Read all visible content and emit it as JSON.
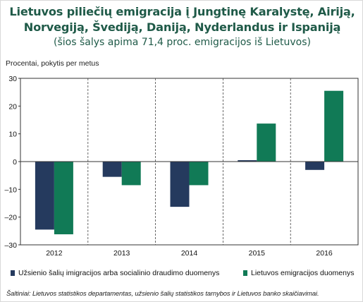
{
  "title": "Lietuvos piliečių emigracija į Jungtinę Karalystę, Airiją, Norvegiją, Švediją, Daniją, Nyderlandus ir Ispaniją",
  "subtitle": "(šios šalys apima 71,4 proc. emigracijos iš Lietuvos)",
  "source": "Šaltiniai: Lietuvos statistikos departamentas, užsienio šalių statistikos tarnybos ir Lietuvos banko skaičiavimai.",
  "colors": {
    "series1": "#253a5e",
    "series2": "#117a56",
    "title": "#1f5a48"
  },
  "chart_data": {
    "type": "bar",
    "title": "Lietuvos piliečių emigracija į Jungtinę Karalystę, Airiją, Norvegiją, Švediją, Daniją, Nyderlandus ir Ispaniją",
    "subtitle": "(šios šalys apima 71,4 proc. emigracijos iš Lietuvos)",
    "xlabel": "",
    "ylabel": "Procentai, pokytis per metus",
    "categories": [
      "2012",
      "2013",
      "2014",
      "2015",
      "2016"
    ],
    "ylim": [
      -30,
      30
    ],
    "yticks": [
      30,
      20,
      10,
      0,
      -10,
      -20,
      -30
    ],
    "ytick_labels": [
      "30",
      "20",
      "10",
      "0",
      "–10",
      "–20",
      "–30"
    ],
    "grid": "vertical dashed",
    "legend_position": "bottom",
    "series": [
      {
        "name": "Užsienio šalių imigracijos arba socialinio draudimo duomenys",
        "color": "#253a5e",
        "values": [
          -24.5,
          -5.5,
          -16.3,
          0.5,
          -3.0
        ]
      },
      {
        "name": "Lietuvos emigracijos duomenys",
        "color": "#117a56",
        "values": [
          -26.2,
          -8.5,
          -8.5,
          13.7,
          25.5
        ]
      }
    ]
  }
}
